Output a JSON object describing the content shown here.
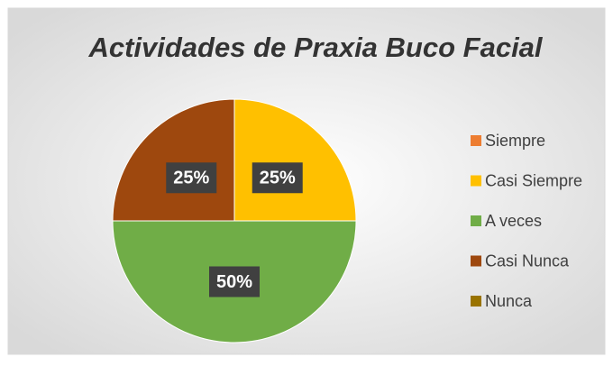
{
  "chart_data": {
    "type": "pie",
    "title": "Actividades de Praxia Buco Facial",
    "categories": [
      "Siempre",
      "Casi Siempre",
      "A veces",
      "Casi Nunca",
      "Nunca"
    ],
    "values": [
      0,
      25,
      50,
      25,
      0
    ],
    "value_labels": [
      null,
      "25%",
      "50%",
      "25%",
      null
    ],
    "colors": [
      "#ED7D31",
      "#FFC000",
      "#70AD47",
      "#9E480E",
      "#997300"
    ],
    "legend": "right"
  }
}
